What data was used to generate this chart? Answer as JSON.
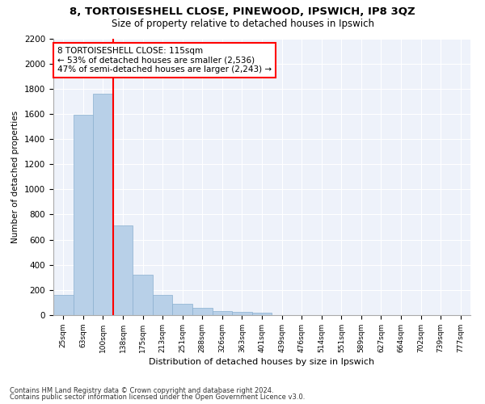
{
  "title": "8, TORTOISESHELL CLOSE, PINEWOOD, IPSWICH, IP8 3QZ",
  "subtitle": "Size of property relative to detached houses in Ipswich",
  "xlabel": "Distribution of detached houses by size in Ipswich",
  "ylabel": "Number of detached properties",
  "footnote1": "Contains HM Land Registry data © Crown copyright and database right 2024.",
  "footnote2": "Contains public sector information licensed under the Open Government Licence v3.0.",
  "bin_labels": [
    "25sqm",
    "63sqm",
    "100sqm",
    "138sqm",
    "175sqm",
    "213sqm",
    "251sqm",
    "288sqm",
    "326sqm",
    "363sqm",
    "401sqm",
    "439sqm",
    "476sqm",
    "514sqm",
    "551sqm",
    "589sqm",
    "627sqm",
    "664sqm",
    "702sqm",
    "739sqm",
    "777sqm"
  ],
  "bar_values": [
    160,
    1590,
    1760,
    710,
    320,
    160,
    90,
    55,
    35,
    25,
    20,
    0,
    0,
    0,
    0,
    0,
    0,
    0,
    0,
    0,
    0
  ],
  "bar_color": "#b8d0e8",
  "bar_edgecolor": "#8ab0d0",
  "vline_color": "red",
  "ylim": [
    0,
    2200
  ],
  "yticks": [
    0,
    200,
    400,
    600,
    800,
    1000,
    1200,
    1400,
    1600,
    1800,
    2000,
    2200
  ],
  "annotation_text": "8 TORTOISESHELL CLOSE: 115sqm\n← 53% of detached houses are smaller (2,536)\n47% of semi-detached houses are larger (2,243) →",
  "annotation_box_color": "white",
  "annotation_box_edgecolor": "red",
  "bg_color": "#eef2fa"
}
